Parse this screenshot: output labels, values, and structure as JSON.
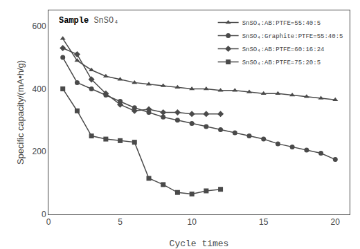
{
  "chart_data": {
    "type": "line",
    "xlabel": "Cycle times",
    "ylabel": "Specific capacity/(mA•h/g)",
    "xlim": [
      0,
      21
    ],
    "ylim": [
      0,
      650
    ],
    "xticks": [
      0,
      5,
      10,
      15,
      20
    ],
    "yticks": [
      0,
      200,
      400,
      600
    ],
    "grid": false,
    "legend": "upper right",
    "annotations": [
      "Sample",
      "SnSO₄"
    ],
    "series": [
      {
        "name": "SnSO₄:AB:PTFE=55:40:5",
        "color": "#4a4a4a",
        "marker": "triangle",
        "x": [
          1,
          2,
          3,
          4,
          5,
          6,
          7,
          8,
          9,
          10,
          11,
          12,
          13,
          14,
          15,
          16,
          17,
          18,
          19,
          20
        ],
        "values": [
          560,
          490,
          460,
          440,
          430,
          420,
          415,
          410,
          405,
          400,
          400,
          395,
          395,
          390,
          385,
          385,
          380,
          375,
          370,
          365
        ]
      },
      {
        "name": "SnSO₄:Graphite:PTFE=55:40:5",
        "color": "#4a4a4a",
        "marker": "circle",
        "x": [
          1,
          2,
          3,
          4,
          5,
          6,
          7,
          8,
          9,
          10,
          11,
          12,
          13,
          14,
          15,
          16,
          17,
          18,
          19,
          20
        ],
        "values": [
          500,
          420,
          400,
          380,
          360,
          340,
          325,
          310,
          300,
          290,
          280,
          270,
          260,
          250,
          240,
          225,
          215,
          205,
          195,
          175
        ]
      },
      {
        "name": "SnSO₄:AB:PTFE=60:16:24",
        "color": "#4a4a4a",
        "marker": "diamond",
        "x": [
          1,
          2,
          3,
          4,
          5,
          6,
          7,
          8,
          9,
          10,
          11,
          12
        ],
        "values": [
          530,
          510,
          430,
          385,
          350,
          330,
          335,
          325,
          325,
          320,
          320,
          320
        ]
      },
      {
        "name": "SnSO₄:AB:PTFE=75:20:5",
        "color": "#4a4a4a",
        "marker": "square",
        "x": [
          1,
          2,
          3,
          4,
          5,
          6,
          7,
          8,
          9,
          10,
          11,
          12
        ],
        "values": [
          400,
          330,
          250,
          240,
          235,
          230,
          115,
          95,
          70,
          65,
          75,
          80
        ]
      }
    ]
  }
}
